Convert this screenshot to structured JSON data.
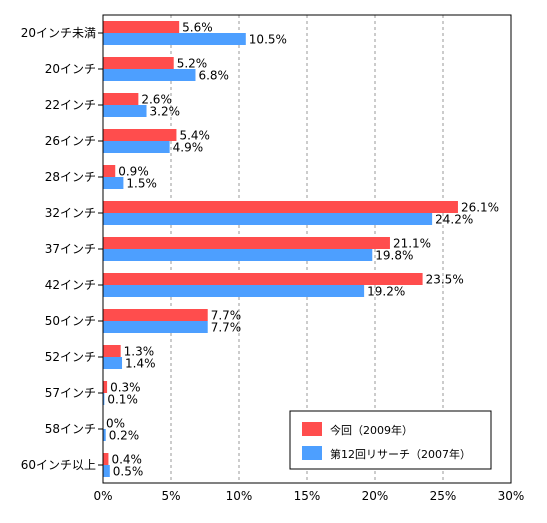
{
  "chart_data": {
    "type": "bar",
    "orientation": "horizontal",
    "categories": [
      "20インチ未満",
      "20インチ",
      "22インチ",
      "26インチ",
      "28インチ",
      "32インチ",
      "37インチ",
      "42インチ",
      "50インチ",
      "52インチ",
      "57インチ",
      "58インチ",
      "60インチ以上"
    ],
    "series": [
      {
        "name": "今回（2009年）",
        "color": "#ff4d4d",
        "values": [
          5.6,
          5.2,
          2.6,
          5.4,
          0.9,
          26.1,
          21.1,
          23.5,
          7.7,
          1.3,
          0.3,
          0,
          0.4
        ],
        "labels": [
          "5.6%",
          "5.2%",
          "2.6%",
          "5.4%",
          "0.9%",
          "26.1%",
          "21.1%",
          "23.5%",
          "7.7%",
          "1.3%",
          "0.3%",
          "0%",
          "0.4%"
        ]
      },
      {
        "name": "第12回リサーチ（2007年）",
        "color": "#4d9fff",
        "values": [
          10.5,
          6.8,
          3.2,
          4.9,
          1.5,
          24.2,
          19.8,
          19.2,
          7.7,
          1.4,
          0.1,
          0.2,
          0.5
        ],
        "labels": [
          "10.5%",
          "6.8%",
          "3.2%",
          "4.9%",
          "1.5%",
          "24.2%",
          "19.8%",
          "19.2%",
          "7.7%",
          "1.4%",
          "0.1%",
          "0.2%",
          "0.5%"
        ]
      }
    ],
    "xlim": [
      0,
      30
    ],
    "xticks": [
      0,
      5,
      10,
      15,
      20,
      25,
      30
    ],
    "xtick_labels": [
      "0%",
      "5%",
      "10%",
      "15%",
      "20%",
      "25%",
      "30%"
    ],
    "grid": "vertical-dashed",
    "legend_position": "bottom-right"
  }
}
